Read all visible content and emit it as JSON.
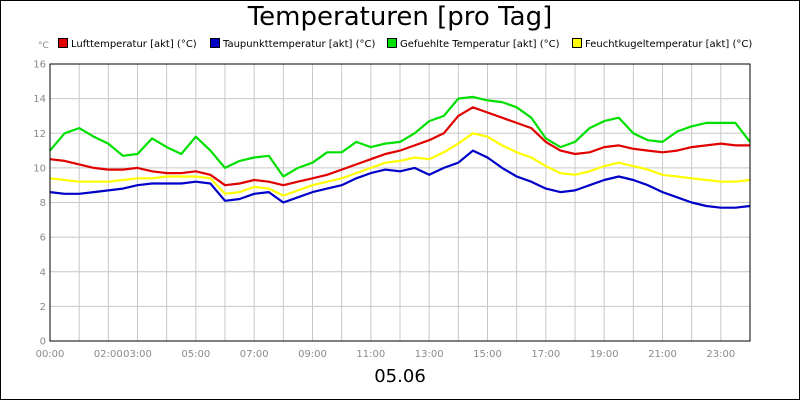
{
  "chart_data": {
    "type": "line",
    "title": "Temperaturen [pro Tag]",
    "unit": "°C",
    "date": "05.06",
    "ylim": [
      0,
      16
    ],
    "yticks": [
      "0",
      "2",
      "4",
      "6",
      "8",
      "10",
      "12",
      "14",
      "16"
    ],
    "xlim_hours": [
      0,
      24
    ],
    "xticks": [
      {
        "hour": 0,
        "label": "00:00"
      },
      {
        "hour": 2,
        "label": "02:00"
      },
      {
        "hour": 3,
        "label": "03:00"
      },
      {
        "hour": 5,
        "label": "05:00"
      },
      {
        "hour": 7,
        "label": "07:00"
      },
      {
        "hour": 9,
        "label": "09:00"
      },
      {
        "hour": 11,
        "label": "11:00"
      },
      {
        "hour": 13,
        "label": "13:00"
      },
      {
        "hour": 15,
        "label": "15:00"
      },
      {
        "hour": 17,
        "label": "17:00"
      },
      {
        "hour": 19,
        "label": "19:00"
      },
      {
        "hour": 21,
        "label": "21:00"
      },
      {
        "hour": 23,
        "label": "23:00"
      }
    ],
    "grid": true,
    "legend_position": "top",
    "x": [
      0,
      0.5,
      1,
      1.5,
      2,
      2.5,
      3,
      3.5,
      4,
      4.5,
      5,
      5.5,
      6,
      6.5,
      7,
      7.5,
      8,
      8.5,
      9,
      9.5,
      10,
      10.5,
      11,
      11.5,
      12,
      12.5,
      13,
      13.5,
      14,
      14.5,
      15,
      15.5,
      16,
      16.5,
      17,
      17.5,
      18,
      18.5,
      19,
      19.5,
      20,
      20.5,
      21,
      21.5,
      22,
      22.5,
      23,
      23.5,
      24
    ],
    "series": [
      {
        "name": "Lufttemperatur [akt] (°C)",
        "color": "#e00000",
        "values": [
          10.5,
          10.4,
          10.2,
          10.0,
          9.9,
          9.9,
          10.0,
          9.8,
          9.7,
          9.7,
          9.8,
          9.6,
          9.0,
          9.1,
          9.3,
          9.2,
          9.0,
          9.2,
          9.4,
          9.6,
          9.9,
          10.2,
          10.5,
          10.8,
          11.0,
          11.3,
          11.6,
          12.0,
          13.0,
          13.5,
          13.2,
          12.9,
          12.6,
          12.3,
          11.5,
          11.0,
          10.8,
          10.9,
          11.2,
          11.3,
          11.1,
          11.0,
          10.9,
          11.0,
          11.2,
          11.3,
          11.4,
          11.3,
          11.3
        ]
      },
      {
        "name": "Taupunkttemperatur [akt] (°C)",
        "color": "#0000c8",
        "values": [
          8.6,
          8.5,
          8.5,
          8.6,
          8.7,
          8.8,
          9.0,
          9.1,
          9.1,
          9.1,
          9.2,
          9.1,
          8.1,
          8.2,
          8.5,
          8.6,
          8.0,
          8.3,
          8.6,
          8.8,
          9.0,
          9.4,
          9.7,
          9.9,
          9.8,
          10.0,
          9.6,
          10.0,
          10.3,
          11.0,
          10.6,
          10.0,
          9.5,
          9.2,
          8.8,
          8.6,
          8.7,
          9.0,
          9.3,
          9.5,
          9.3,
          9.0,
          8.6,
          8.3,
          8.0,
          7.8,
          7.7,
          7.7,
          7.8
        ]
      },
      {
        "name": "Gefuehlte Temperatur [akt] (°C)",
        "color": "#00e000",
        "values": [
          11.0,
          12.0,
          12.3,
          11.8,
          11.4,
          10.7,
          10.8,
          11.7,
          11.2,
          10.8,
          11.8,
          11.0,
          10.0,
          10.4,
          10.6,
          10.7,
          9.5,
          10.0,
          10.3,
          10.9,
          10.9,
          11.5,
          11.2,
          11.4,
          11.5,
          12.0,
          12.7,
          13.0,
          14.0,
          14.1,
          13.9,
          13.8,
          13.5,
          12.9,
          11.7,
          11.2,
          11.5,
          12.3,
          12.7,
          12.9,
          12.0,
          11.6,
          11.5,
          12.1,
          12.4,
          12.6,
          12.6,
          12.6,
          11.5
        ]
      },
      {
        "name": "Feuchtkugeltemperatur [akt] (°C)",
        "color": "#ffff00",
        "values": [
          9.4,
          9.3,
          9.2,
          9.2,
          9.2,
          9.3,
          9.4,
          9.4,
          9.5,
          9.5,
          9.5,
          9.4,
          8.5,
          8.6,
          8.9,
          8.8,
          8.4,
          8.7,
          9.0,
          9.2,
          9.4,
          9.7,
          10.0,
          10.3,
          10.4,
          10.6,
          10.5,
          10.9,
          11.4,
          12.0,
          11.8,
          11.3,
          10.9,
          10.6,
          10.1,
          9.7,
          9.6,
          9.8,
          10.1,
          10.3,
          10.1,
          9.9,
          9.6,
          9.5,
          9.4,
          9.3,
          9.2,
          9.2,
          9.3
        ]
      }
    ]
  }
}
